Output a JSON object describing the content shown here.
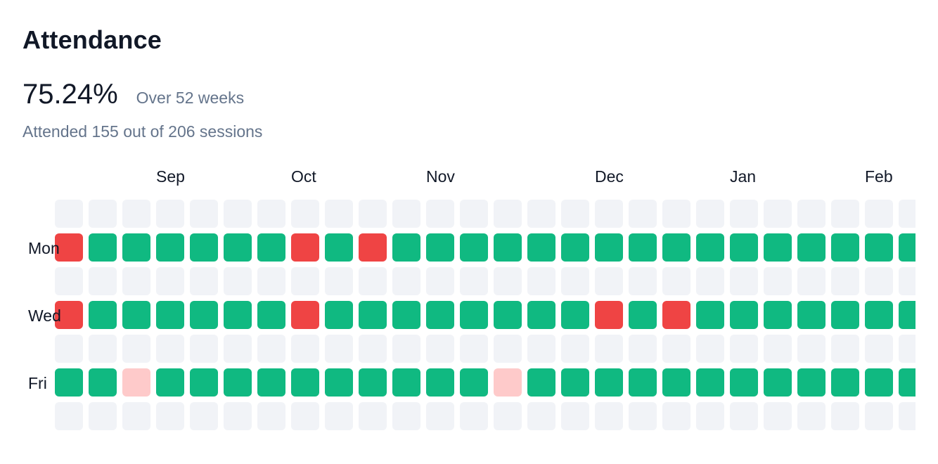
{
  "widget": {
    "title": "Attendance",
    "percentage": "75.24%",
    "period": "Over 52 weeks",
    "summary": "Attended 155 out of 206 sessions"
  },
  "legend_colors": {
    "attended": "#10b981",
    "missed": "#ef4444",
    "excused": "#fecaca",
    "empty": "#f1f3f7"
  },
  "heatmap": {
    "months": [
      {
        "label": "Sep",
        "week": 3
      },
      {
        "label": "Oct",
        "week": 7
      },
      {
        "label": "Nov",
        "week": 11
      },
      {
        "label": "Dec",
        "week": 16
      },
      {
        "label": "Jan",
        "week": 20
      },
      {
        "label": "Feb",
        "week": 24
      }
    ],
    "day_labels": [
      {
        "label": "Mon",
        "row": 1
      },
      {
        "label": "Wed",
        "row": 3
      },
      {
        "label": "Fri",
        "row": 5
      }
    ],
    "rows": [
      "EEEEEEEEEEEEEEEEEEEEEEEEEE",
      "MAAAAAAMAMAAAAAAAAAAAAAAAA",
      "EEEEEEEEEEEEEEEEEEEEEEEEEE",
      "MAAAAAAMAAAAAAAAMAMAAAAAAA",
      "EEEEEEEEEEEEEEEEEEEEEEEEEE",
      "AAXAAAAAAAAAAXAAAAAAAAAAAA",
      "EEEEEEEEEEEEEEEEEEEEEEEEEE"
    ]
  }
}
